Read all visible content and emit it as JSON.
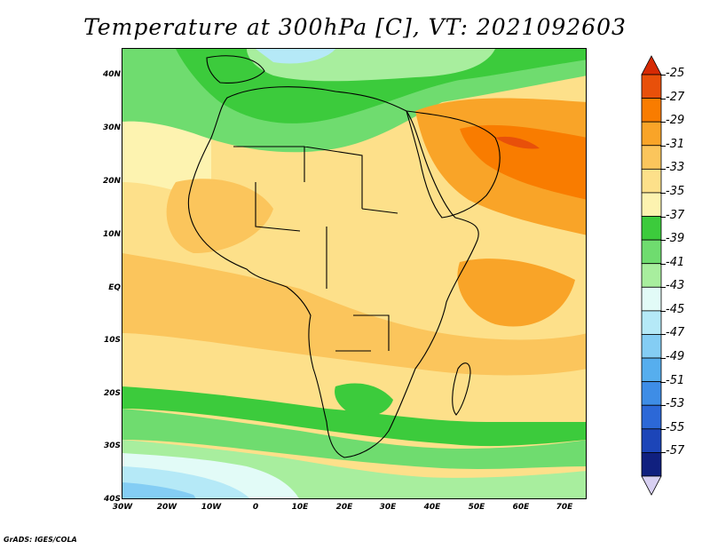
{
  "title": "Temperature at 300hPa [C], VT: 2021092603",
  "credit": "GrADS: IGES/COLA",
  "map": {
    "lat_labels": [
      "40N",
      "30N",
      "20N",
      "10N",
      "EQ",
      "10S",
      "20S",
      "30S",
      "40S"
    ],
    "lon_labels": [
      "30W",
      "20W",
      "10W",
      "0",
      "10E",
      "20E",
      "30E",
      "40E",
      "50E",
      "60E",
      "70E"
    ]
  },
  "colorbar": {
    "labels": [
      "-25",
      "-27",
      "-29",
      "-31",
      "-33",
      "-35",
      "-37",
      "-39",
      "-41",
      "-43",
      "-45",
      "-47",
      "-49",
      "-51",
      "-53",
      "-55",
      "-57"
    ],
    "colors": [
      "#e8500a",
      "#f97c00",
      "#f9a428",
      "#fbc55c",
      "#fde08a",
      "#fdf3b0",
      "#3ccb3c",
      "#6fdc6f",
      "#a8ee9e",
      "#e2fbf7",
      "#b5e9f7",
      "#84cdf4",
      "#56aeee",
      "#3e8de6",
      "#2c68d7",
      "#1c45b8",
      "#10207f"
    ],
    "top_arrow_color": "#d62a04",
    "bottom_arrow_color": "#d8d0f2"
  }
}
